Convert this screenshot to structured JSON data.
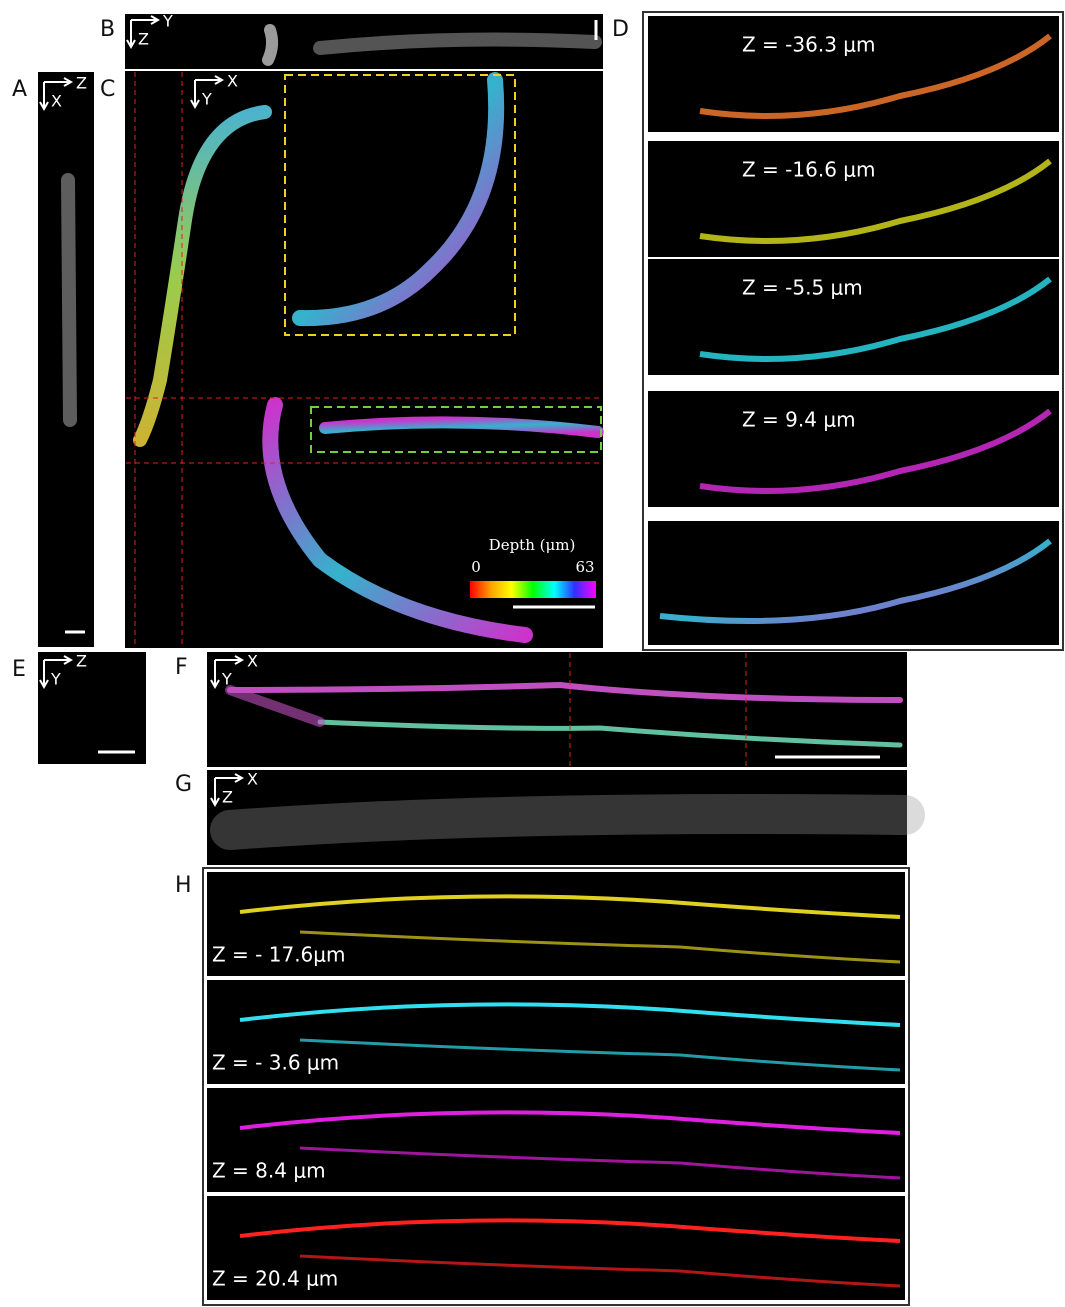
{
  "panels": {
    "A": {
      "label": "A",
      "axis_h": "Z",
      "axis_v": "X"
    },
    "B": {
      "label": "B",
      "axis_h": "Y",
      "axis_v": "Z"
    },
    "C": {
      "label": "C",
      "axis_h": "X",
      "axis_v": "Y",
      "colorbar": {
        "title": "Depth (μm)",
        "min": 0,
        "max": 63
      }
    },
    "D": {
      "label": "D",
      "slices": [
        "Z = -36.3 μm",
        "Z = -16.6 μm",
        "Z = -5.5 μm",
        "Z = 9.4 μm"
      ]
    },
    "E": {
      "label": "E",
      "axis_h": "Z",
      "axis_v": "Y"
    },
    "F": {
      "label": "F",
      "axis_h": "X",
      "axis_v": "Y"
    },
    "G": {
      "label": "G",
      "axis_h": "X",
      "axis_v": "Z"
    },
    "H": {
      "label": "H",
      "slices": [
        "Z = - 17.6μm",
        "Z = - 3.6 μm",
        "Z = 8.4 μm",
        "Z = 20.4 μm"
      ]
    }
  }
}
